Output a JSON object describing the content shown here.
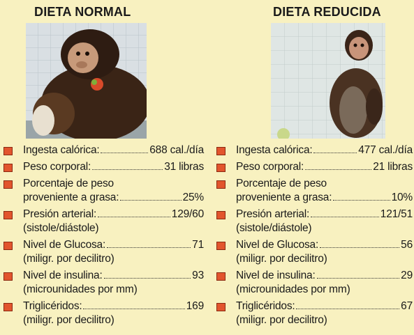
{
  "normal": {
    "title": "DIETA NORMAL",
    "stats": [
      {
        "label": "Ingesta calórica:",
        "value": "688 cal./día"
      },
      {
        "label": "Peso corporal:",
        "value": "31 libras"
      },
      {
        "pre": "Porcentaje de peso",
        "label": "proveniente a grasa:",
        "value": "25%"
      },
      {
        "label": "Presión arterial:",
        "value": "129/60",
        "sub": "(sistole/diástole)"
      },
      {
        "label": "Nivel de Glucosa:",
        "value": "71",
        "sub": "(miligr. por decilitro)"
      },
      {
        "label": "Nivel de insulina:",
        "value": "93",
        "sub": "(microunidades por mm)"
      },
      {
        "label": "Triglicéridos:",
        "value": "169",
        "sub": "(miligr. por decilitro)"
      }
    ]
  },
  "reducida": {
    "title": "DIETA REDUCIDA",
    "stats": [
      {
        "label": "Ingesta calórica:",
        "value": "477 cal./día"
      },
      {
        "label": "Peso corporal:",
        "value": "21 libras"
      },
      {
        "pre": "Porcentaje de peso",
        "label": "proveniente a grasa:",
        "value": "10%"
      },
      {
        "label": "Presión arterial:",
        "value": "121/51",
        "sub": "(sistole/diástole)"
      },
      {
        "label": "Nivel de Glucosa:",
        "value": "56",
        "sub": "(miligr. por decilitro)"
      },
      {
        "label": "Nivel de insulina:",
        "value": "29",
        "sub": "(microunidades por mm)"
      },
      {
        "label": "Triglicéridos:",
        "value": "67",
        "sub": "(miligr. por decilitro)"
      }
    ]
  },
  "colors": {
    "background": "#f8f1c0",
    "bullet": "#e2552d"
  }
}
